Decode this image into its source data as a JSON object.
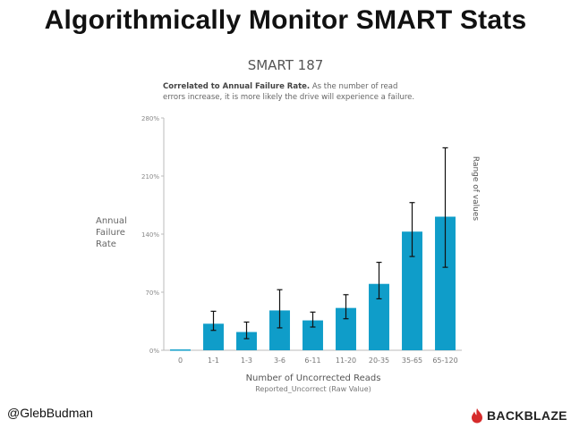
{
  "slide": {
    "title": "Algorithmically Monitor SMART Stats",
    "author": "@GlebBudman",
    "brand": "BACKBLAZE"
  },
  "chart_data": {
    "type": "bar",
    "title": "SMART 187",
    "subtitle_bold": "Correlated to Annual Failure Rate.",
    "subtitle_rest": " As the number of read errors increase, it is more likely the drive will experience a failure.",
    "ylabel": "Annual Failure Rate",
    "xlabel": "Number of Uncorrected Reads",
    "xsublabel": "Reported_Uncorrect (Raw Value)",
    "error_label": "Range of values",
    "categories": [
      "0",
      "1-1",
      "1-3",
      "3-6",
      "6-11",
      "11-20",
      "20-35",
      "35-65",
      "65-120"
    ],
    "values": [
      1,
      32,
      22,
      48,
      36,
      51,
      80,
      143,
      161
    ],
    "error_low": [
      null,
      24,
      14,
      27,
      28,
      38,
      62,
      113,
      100
    ],
    "error_high": [
      null,
      47,
      34,
      73,
      46,
      67,
      106,
      178,
      244
    ],
    "ylim": [
      0,
      280
    ],
    "yticks": [
      0,
      70,
      140,
      210,
      280
    ],
    "ytick_labels": [
      "0%",
      "70%",
      "140%",
      "210%",
      "280%"
    ],
    "bar_color": "#0f9dc9",
    "grid": false
  }
}
